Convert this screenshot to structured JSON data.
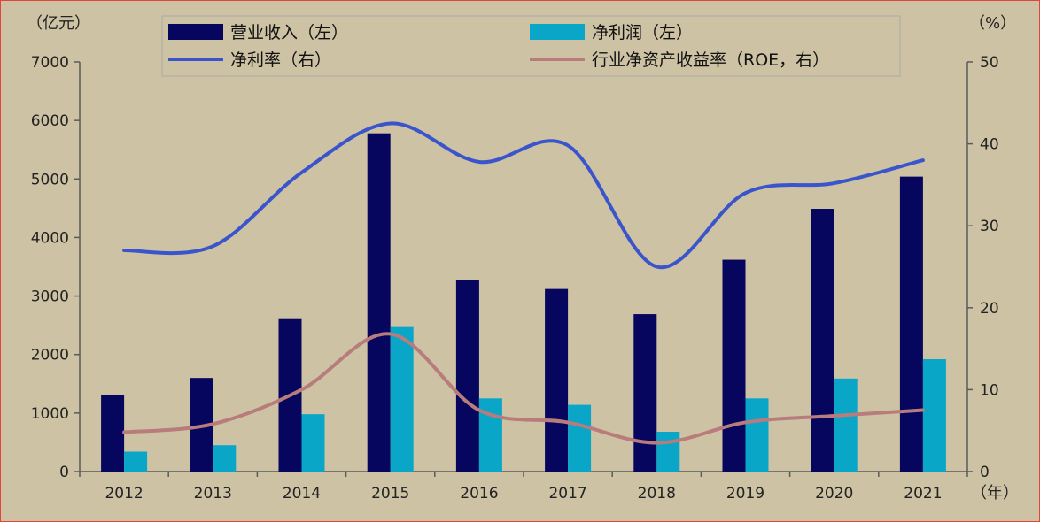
{
  "chart_data": {
    "type": "bar+line",
    "categories": [
      "2012",
      "2013",
      "2014",
      "2015",
      "2016",
      "2017",
      "2018",
      "2019",
      "2020",
      "2021"
    ],
    "left_axis": {
      "unit": "（亿元）",
      "min": 0,
      "max": 7000,
      "ticks": [
        "0",
        "1000",
        "2000",
        "3000",
        "4000",
        "5000",
        "6000",
        "7000"
      ]
    },
    "right_axis": {
      "unit": "（%）",
      "min": 0,
      "max": 50,
      "ticks": [
        "0",
        "10",
        "20",
        "30",
        "40",
        "50"
      ]
    },
    "x_unit": "（年）",
    "series": [
      {
        "name": "营业收入（左）",
        "kind": "bar",
        "axis": "left",
        "color": "#06065e",
        "values": [
          1310,
          1600,
          2620,
          5780,
          3280,
          3120,
          2690,
          3620,
          4490,
          5040
        ]
      },
      {
        "name": "净利润（左）",
        "kind": "bar",
        "axis": "left",
        "color": "#0aa6c8",
        "values": [
          340,
          450,
          980,
          2470,
          1250,
          1140,
          680,
          1250,
          1590,
          1920
        ]
      },
      {
        "name": "净利率（右）",
        "kind": "line",
        "axis": "right",
        "color": "#3a55cc",
        "values": [
          27.0,
          27.5,
          36.5,
          42.5,
          37.8,
          39.8,
          25.0,
          34.0,
          35.2,
          38.0
        ]
      },
      {
        "name": "行业净资产收益率（ROE，右）",
        "kind": "line",
        "axis": "right",
        "color": "#b87c7c",
        "values": [
          4.8,
          5.8,
          10.0,
          16.8,
          7.5,
          6.0,
          3.5,
          6.0,
          6.8,
          7.5
        ]
      }
    ],
    "legend": "top"
  }
}
